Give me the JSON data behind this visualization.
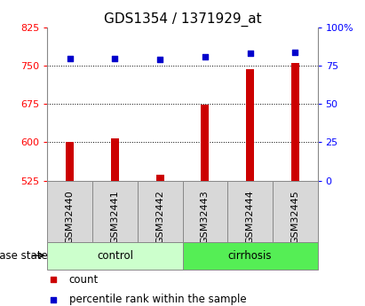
{
  "title": "GDS1354 / 1371929_at",
  "samples": [
    "GSM32440",
    "GSM32441",
    "GSM32442",
    "GSM32443",
    "GSM32444",
    "GSM32445"
  ],
  "count_values": [
    600,
    608,
    537,
    673,
    743,
    755
  ],
  "percentile_values": [
    80,
    80,
    79,
    81,
    83,
    84
  ],
  "ylim_left": [
    525,
    825
  ],
  "ylim_right": [
    0,
    100
  ],
  "yticks_left": [
    525,
    600,
    675,
    750,
    825
  ],
  "yticks_right": [
    0,
    25,
    50,
    75,
    100
  ],
  "ytick_labels_right": [
    "0",
    "25",
    "50",
    "75",
    "100%"
  ],
  "bar_color": "#cc0000",
  "dot_color": "#0000cc",
  "bar_bottom": 525,
  "groups": [
    {
      "label": "control",
      "indices": [
        0,
        1,
        2
      ],
      "color": "#ccffcc"
    },
    {
      "label": "cirrhosis",
      "indices": [
        3,
        4,
        5
      ],
      "color": "#55ee55"
    }
  ],
  "group_label_prefix": "disease state",
  "legend_items": [
    {
      "label": "count",
      "color": "#cc0000"
    },
    {
      "label": "percentile rank within the sample",
      "color": "#0000cc"
    }
  ],
  "grid_color": "black",
  "title_fontsize": 11,
  "tick_fontsize": 8,
  "label_fontsize": 8.5,
  "bar_width": 0.18
}
